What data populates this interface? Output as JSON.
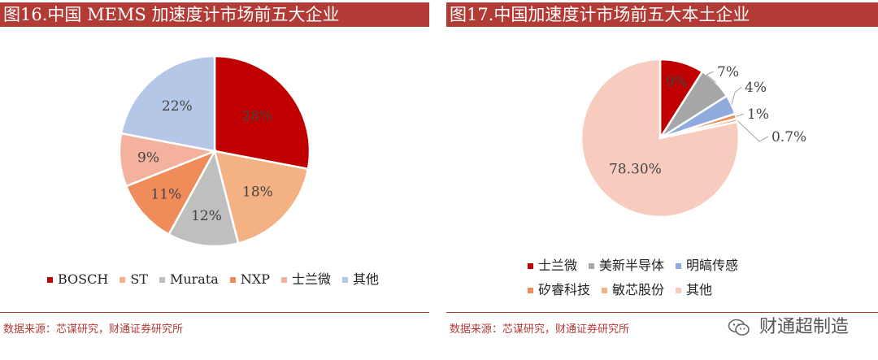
{
  "chart_data": [
    {
      "type": "pie",
      "title": "图16.中国 MEMS 加速度计市场前五大企业",
      "categories": [
        "BOSCH",
        "ST",
        "Murata",
        "NXP",
        "士兰微",
        "其他"
      ],
      "values": [
        28,
        18,
        12,
        11,
        9,
        22
      ],
      "data_labels": [
        "28%",
        "18%",
        "12%",
        "11%",
        "9%",
        "22%"
      ],
      "colors": [
        "#c00000",
        "#f4b183",
        "#bfbfbf",
        "#f08c5a",
        "#f3b19e",
        "#b4c7e7"
      ],
      "legend_position": "bottom"
    },
    {
      "type": "pie",
      "title": "图17.中国加速度计市场前五大本土企业",
      "categories": [
        "士兰微",
        "美新半导体",
        "明皜传感",
        "矽睿科技",
        "敏芯股份",
        "其他"
      ],
      "values": [
        9,
        7,
        4,
        1,
        0.7,
        78.3
      ],
      "data_labels": [
        "9%",
        "7%",
        "4%",
        "1%",
        "0.7%",
        "78.30%"
      ],
      "colors": [
        "#c00000",
        "#a6a6a6",
        "#8faadc",
        "#f08c5a",
        "#f4b183",
        "#f8cbbf"
      ],
      "legend_position": "bottom"
    }
  ],
  "sources": {
    "left": "数据来源：芯谋研究，财通证券研究所",
    "right": "数据来源：芯谋研究，财通证券研究所"
  },
  "watermark": {
    "text": "财通超制造",
    "icon": "wechat-icon"
  }
}
